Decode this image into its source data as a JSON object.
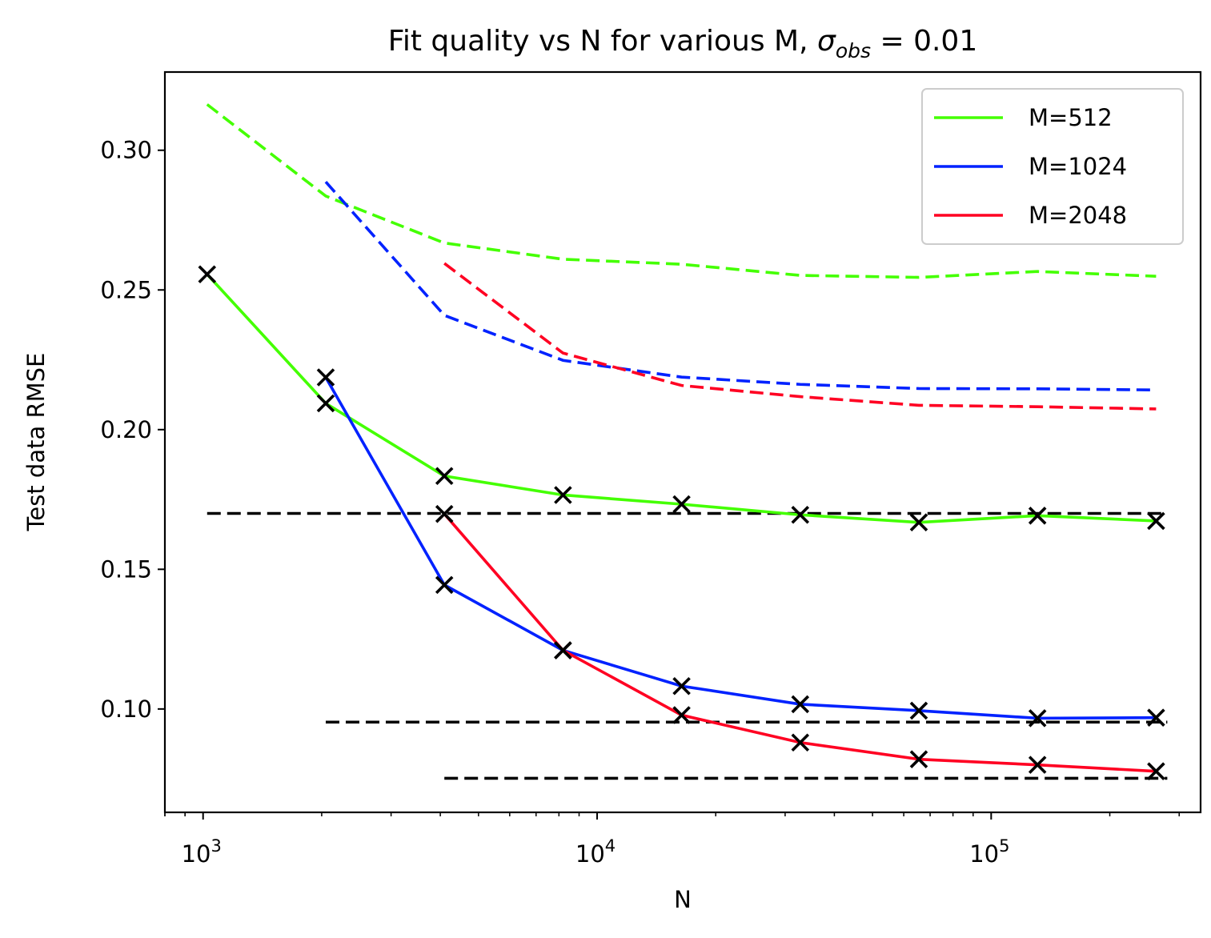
{
  "chart_data": {
    "type": "line",
    "title": {
      "main": "Fit quality vs N for various M, ",
      "sigma": "σ",
      "sub": "obs",
      "tail": " = 0.01"
    },
    "xlabel": "N",
    "ylabel": "Test data RMSE",
    "xscale": "log",
    "xlim": [
      800,
      340000
    ],
    "ylim": [
      0.063,
      0.328
    ],
    "xticks": [
      {
        "value": 1000,
        "base": "10",
        "exp": "3"
      },
      {
        "value": 10000,
        "base": "10",
        "exp": "4"
      },
      {
        "value": 100000,
        "base": "10",
        "exp": "5"
      }
    ],
    "yticks": [
      {
        "value": 0.1,
        "label": "0.10"
      },
      {
        "value": 0.15,
        "label": "0.15"
      },
      {
        "value": 0.2,
        "label": "0.20"
      },
      {
        "value": 0.25,
        "label": "0.25"
      },
      {
        "value": 0.3,
        "label": "0.30"
      }
    ],
    "legend_position": "top-right",
    "series": [
      {
        "name": "M=512",
        "color": "#44ff00",
        "x": [
          1024,
          2048,
          4096,
          8192,
          16384,
          32768,
          65536,
          131072,
          262144
        ],
        "test": [
          0.2556,
          0.2094,
          0.1834,
          0.1766,
          0.1733,
          0.1695,
          0.1668,
          0.1692,
          0.1673
        ],
        "train": [
          0.3164,
          0.2836,
          0.2668,
          0.261,
          0.2592,
          0.2552,
          0.2545,
          0.2566,
          0.2549
        ],
        "train_xstart": 1024,
        "limit": 0.17
      },
      {
        "name": "M=1024",
        "color": "#0022ff",
        "x": [
          2048,
          4096,
          8192,
          16384,
          32768,
          65536,
          131072,
          262144
        ],
        "test": [
          0.2187,
          0.1444,
          0.121,
          0.1082,
          0.1017,
          0.0994,
          0.0967,
          0.0969
        ],
        "train": [
          0.2887,
          0.2409,
          0.2248,
          0.2188,
          0.2162,
          0.2147,
          0.2146,
          0.2142
        ],
        "train_xstart": 2048,
        "limit": 0.0953
      },
      {
        "name": "M=2048",
        "color": "#ff0022",
        "x": [
          4096,
          8192,
          16384,
          32768,
          65536,
          131072,
          262144
        ],
        "test": [
          0.1698,
          0.121,
          0.0978,
          0.088,
          0.082,
          0.08,
          0.0777
        ],
        "train": [
          0.2595,
          0.2274,
          0.2158,
          0.2118,
          0.2087,
          0.2082,
          0.2074
        ],
        "train_xstart": 4096,
        "limit": 0.0752
      }
    ]
  }
}
